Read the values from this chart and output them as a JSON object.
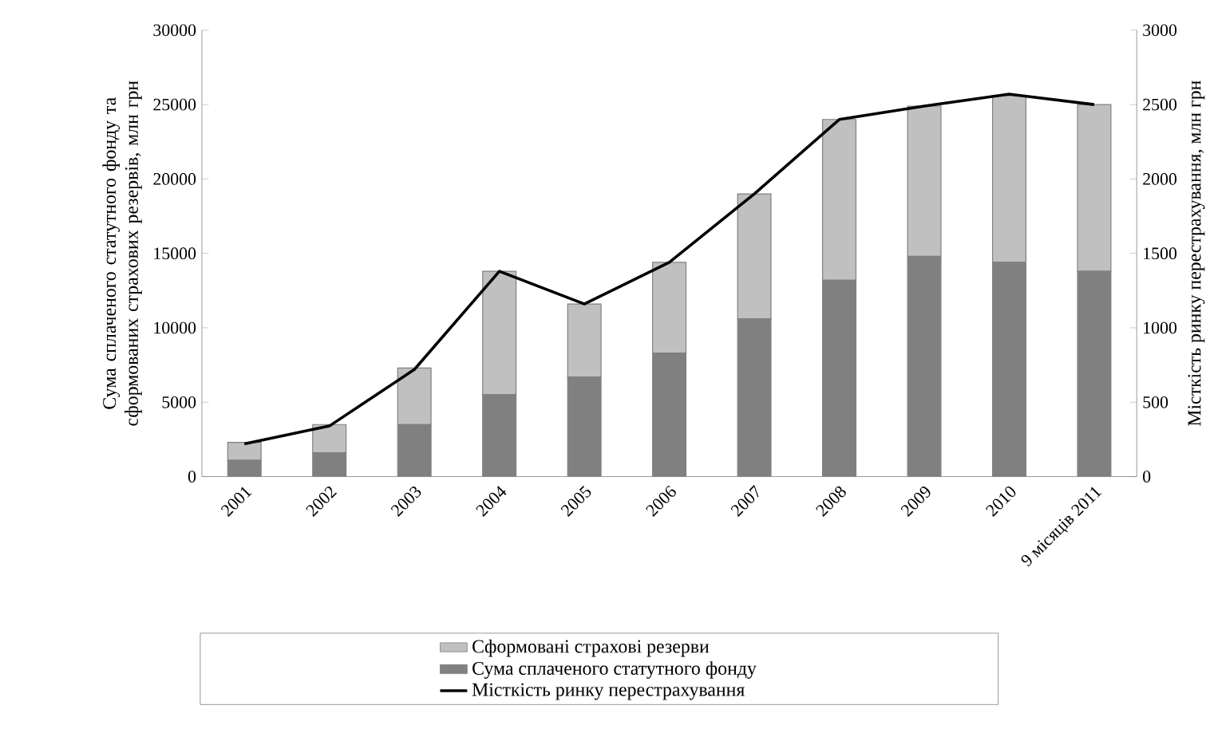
{
  "chart_data": {
    "type": "bar",
    "stacked": true,
    "legend": "bottom",
    "categories": [
      "2001",
      "2002",
      "2003",
      "2004",
      "2005",
      "2006",
      "2007",
      "2008",
      "2009",
      "2010",
      "9 місяців 2011"
    ],
    "series": [
      {
        "name": "Сума сплаченого статутного фонду",
        "color": "#808080",
        "values": [
          1100,
          1600,
          3500,
          5500,
          6700,
          8300,
          10600,
          13200,
          14800,
          14400,
          13800
        ]
      },
      {
        "name": "Сформовані страхові резерви",
        "color": "#c0c0c0",
        "values": [
          1200,
          1900,
          3800,
          8300,
          4900,
          6100,
          8400,
          10800,
          10100,
          11200,
          11200
        ]
      },
      {
        "name": "Місткість ринку перестрахування",
        "type": "line",
        "axis": "y2",
        "color": "#000000",
        "values": [
          220,
          340,
          720,
          1380,
          1160,
          1440,
          1900,
          2400,
          2490,
          2570,
          2500
        ]
      }
    ],
    "ylabel": "Сума сплаченого статутного фонду та сформованих страхових резервів, млн грн",
    "y2label": "Місткість ринку перестрахування, млн грн",
    "ylim": [
      0,
      30000
    ],
    "yticks": [
      0,
      5000,
      10000,
      15000,
      20000,
      25000,
      30000
    ],
    "y2lim": [
      0,
      3000
    ],
    "y2ticks": [
      0,
      500,
      1000,
      1500,
      2000,
      2500,
      3000
    ]
  }
}
